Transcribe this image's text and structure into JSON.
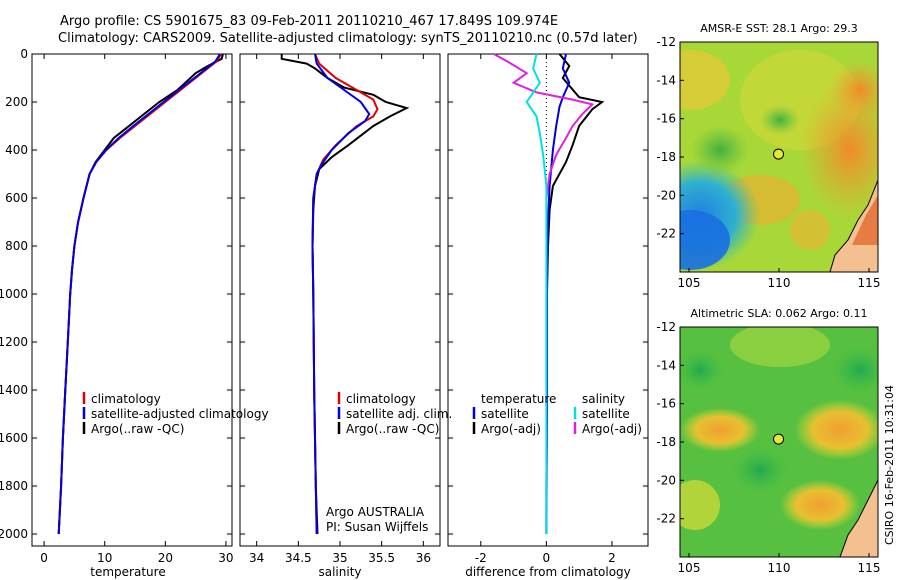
{
  "header": {
    "title_line1": "Argo profile: CS 5901675_83 09-Feb-2011 20110210_467 17.849S 109.974E",
    "title_line2": "Climatology: CARS2009. Satellite-adjusted climatology: synTS_20110210.nc (0.57d later)"
  },
  "footer_stamp": "CSIRO 16-Feb-2011 10:31:04",
  "chart_data": [
    {
      "type": "line",
      "panel": "temperature",
      "xlabel": "temperature",
      "ylabel": "",
      "xlim": [
        -2,
        31
      ],
      "ylim": [
        2050,
        0
      ],
      "xticks": [
        0,
        10,
        20,
        30
      ],
      "yticks": [
        0,
        200,
        400,
        600,
        800,
        1000,
        1200,
        1400,
        1600,
        1800,
        2000
      ],
      "legend": [
        {
          "label": "climatology",
          "color": "#e00000"
        },
        {
          "label": "satellite-adjusted climatology",
          "color": "#0000e0"
        },
        {
          "label": "Argo(..raw -QC)",
          "color": "#000000"
        }
      ],
      "series": [
        {
          "name": "Argo(..raw -QC)",
          "color": "#000000",
          "points": [
            [
              29.5,
              0
            ],
            [
              29.3,
              20
            ],
            [
              27,
              50
            ],
            [
              25,
              80
            ],
            [
              22,
              150
            ],
            [
              19,
              200
            ],
            [
              16.5,
              250
            ],
            [
              14,
              300
            ],
            [
              11.5,
              350
            ],
            [
              10,
              400
            ],
            [
              8.5,
              450
            ],
            [
              7.5,
              500
            ],
            [
              6.5,
              600
            ],
            [
              5.6,
              700
            ],
            [
              5,
              800
            ],
            [
              4.6,
              900
            ],
            [
              4.3,
              1000
            ],
            [
              3.9,
              1200
            ],
            [
              3.5,
              1400
            ],
            [
              3.1,
              1600
            ],
            [
              2.8,
              1800
            ],
            [
              2.4,
              2000
            ]
          ]
        },
        {
          "name": "climatology",
          "color": "#e00000",
          "points": [
            [
              29.2,
              0
            ],
            [
              28.5,
              30
            ],
            [
              27,
              60
            ],
            [
              25,
              100
            ],
            [
              22.5,
              150
            ],
            [
              20,
              200
            ],
            [
              17.5,
              250
            ],
            [
              15,
              300
            ],
            [
              12.5,
              350
            ],
            [
              10.3,
              400
            ],
            [
              8.6,
              450
            ],
            [
              7.5,
              500
            ],
            [
              6.5,
              600
            ],
            [
              5.6,
              700
            ],
            [
              5,
              800
            ],
            [
              4.6,
              900
            ],
            [
              4.3,
              1000
            ],
            [
              3.9,
              1200
            ],
            [
              3.5,
              1400
            ],
            [
              3.1,
              1600
            ],
            [
              2.8,
              1800
            ],
            [
              2.4,
              2000
            ]
          ]
        },
        {
          "name": "satellite-adjusted climatology",
          "color": "#0000e0",
          "points": [
            [
              29,
              0
            ],
            [
              28.3,
              30
            ],
            [
              26.8,
              60
            ],
            [
              24.8,
              100
            ],
            [
              22.2,
              150
            ],
            [
              19.7,
              200
            ],
            [
              17.2,
              250
            ],
            [
              14.7,
              300
            ],
            [
              12.3,
              350
            ],
            [
              10.2,
              400
            ],
            [
              8.6,
              450
            ],
            [
              7.5,
              500
            ],
            [
              6.5,
              600
            ],
            [
              5.6,
              700
            ],
            [
              5,
              800
            ],
            [
              4.6,
              900
            ],
            [
              4.3,
              1000
            ],
            [
              3.9,
              1200
            ],
            [
              3.5,
              1400
            ],
            [
              3.1,
              1600
            ],
            [
              2.8,
              1800
            ],
            [
              2.4,
              2000
            ]
          ]
        }
      ]
    },
    {
      "type": "line",
      "panel": "salinity",
      "xlabel": "salinity",
      "xlim": [
        33.8,
        36.2
      ],
      "ylim": [
        2050,
        0
      ],
      "xticks": [
        34,
        34.5,
        35,
        35.5,
        36
      ],
      "legend": [
        {
          "label": "climatology",
          "color": "#e00000"
        },
        {
          "label": "satellite adj. clim.",
          "color": "#0000e0"
        },
        {
          "label": "Argo(..raw -QC)",
          "color": "#000000"
        }
      ],
      "annotations": [
        "Argo AUSTRALIA",
        "PI: Susan Wijffels"
      ],
      "series": [
        {
          "name": "Argo(..raw -QC)",
          "color": "#000000",
          "points": [
            [
              34.3,
              0
            ],
            [
              34.3,
              20
            ],
            [
              34.6,
              40
            ],
            [
              34.7,
              60
            ],
            [
              34.85,
              100
            ],
            [
              35.05,
              140
            ],
            [
              35.4,
              170
            ],
            [
              35.55,
              200
            ],
            [
              35.65,
              210
            ],
            [
              35.8,
              225
            ],
            [
              35.6,
              260
            ],
            [
              35.4,
              300
            ],
            [
              35.1,
              380
            ],
            [
              34.9,
              430
            ],
            [
              34.75,
              480
            ],
            [
              34.7,
              550
            ],
            [
              34.68,
              650
            ],
            [
              34.67,
              800
            ],
            [
              34.68,
              1000
            ],
            [
              34.69,
              1400
            ],
            [
              34.71,
              1800
            ],
            [
              34.73,
              2000
            ]
          ]
        },
        {
          "name": "climatology",
          "color": "#e00000",
          "points": [
            [
              34.7,
              0
            ],
            [
              34.75,
              40
            ],
            [
              34.95,
              100
            ],
            [
              35.2,
              150
            ],
            [
              35.4,
              190
            ],
            [
              35.45,
              230
            ],
            [
              35.4,
              260
            ],
            [
              35.2,
              300
            ],
            [
              34.95,
              380
            ],
            [
              34.8,
              440
            ],
            [
              34.72,
              500
            ],
            [
              34.68,
              600
            ],
            [
              34.67,
              800
            ],
            [
              34.68,
              1000
            ],
            [
              34.69,
              1400
            ],
            [
              34.71,
              1800
            ],
            [
              34.72,
              2000
            ]
          ]
        },
        {
          "name": "satellite adj. clim.",
          "color": "#0000e0",
          "points": [
            [
              34.7,
              0
            ],
            [
              34.72,
              40
            ],
            [
              34.85,
              100
            ],
            [
              35.05,
              150
            ],
            [
              35.25,
              200
            ],
            [
              35.35,
              250
            ],
            [
              35.3,
              280
            ],
            [
              35.1,
              330
            ],
            [
              34.9,
              400
            ],
            [
              34.78,
              460
            ],
            [
              34.72,
              500
            ],
            [
              34.68,
              600
            ],
            [
              34.67,
              800
            ],
            [
              34.68,
              1000
            ],
            [
              34.69,
              1400
            ],
            [
              34.71,
              1800
            ],
            [
              34.72,
              2000
            ]
          ]
        }
      ]
    },
    {
      "type": "line",
      "panel": "difference",
      "xlabel": "difference from climatology",
      "xlim": [
        -3,
        3.1
      ],
      "ylim": [
        2050,
        0
      ],
      "xticks": [
        -2,
        0,
        2
      ],
      "legend_left_title": "temperature",
      "legend_right_title": "salinity",
      "legend": [
        {
          "label": "satellite",
          "color": "#0000e0",
          "group": "temperature"
        },
        {
          "label": "Argo(-adj)",
          "color": "#000000",
          "group": "temperature"
        },
        {
          "label": "satellite",
          "color": "#00e0e0",
          "group": "salinity"
        },
        {
          "label": "Argo(-adj)",
          "color": "#e020e0",
          "group": "salinity"
        }
      ],
      "series": [
        {
          "name": "temperature Argo(-adj)",
          "color": "#000000",
          "points": [
            [
              0.4,
              0
            ],
            [
              0.7,
              50
            ],
            [
              0.5,
              100
            ],
            [
              1.0,
              180
            ],
            [
              1.7,
              200
            ],
            [
              1.4,
              230
            ],
            [
              1.0,
              300
            ],
            [
              0.8,
              380
            ],
            [
              0.6,
              450
            ],
            [
              0.2,
              550
            ],
            [
              0.1,
              650
            ],
            [
              0.05,
              800
            ],
            [
              0.02,
              1000
            ],
            [
              0.02,
              1400
            ],
            [
              0.0,
              1800
            ],
            [
              0.0,
              2000
            ]
          ]
        },
        {
          "name": "temperature satellite",
          "color": "#0000e0",
          "points": [
            [
              0.6,
              0
            ],
            [
              0.5,
              60
            ],
            [
              0.7,
              120
            ],
            [
              0.5,
              180
            ],
            [
              0.4,
              220
            ],
            [
              0.3,
              300
            ],
            [
              0.2,
              400
            ],
            [
              0.1,
              550
            ],
            [
              0.05,
              700
            ],
            [
              0.02,
              900
            ],
            [
              0.02,
              1400
            ],
            [
              0.0,
              2000
            ]
          ]
        },
        {
          "name": "salinity Argo(-adj)",
          "color": "#e020e0",
          "points": [
            [
              -1.6,
              0
            ],
            [
              -1.2,
              30
            ],
            [
              -0.6,
              80
            ],
            [
              -1.0,
              120
            ],
            [
              -0.3,
              160
            ],
            [
              0.8,
              190
            ],
            [
              1.4,
              210
            ],
            [
              1.1,
              250
            ],
            [
              0.8,
              300
            ],
            [
              0.6,
              350
            ],
            [
              0.3,
              420
            ],
            [
              0.1,
              500
            ],
            [
              0.0,
              600
            ]
          ]
        },
        {
          "name": "salinity satellite",
          "color": "#00e0e0",
          "points": [
            [
              -0.3,
              0
            ],
            [
              -0.4,
              60
            ],
            [
              -0.2,
              120
            ],
            [
              -0.6,
              200
            ],
            [
              -0.3,
              260
            ],
            [
              -0.2,
              330
            ],
            [
              -0.1,
              420
            ],
            [
              0.0,
              550
            ],
            [
              0.0,
              800
            ],
            [
              0.0,
              1200
            ],
            [
              0.0,
              1600
            ],
            [
              0.0,
              2000
            ]
          ]
        }
      ]
    },
    {
      "type": "heatmap",
      "panel": "sst-map",
      "title": "AMSR-E SST: 28.1 Argo: 29.3",
      "xlim": [
        104.5,
        115.5
      ],
      "ylim": [
        -24,
        -12
      ],
      "xticks": [
        105,
        110,
        115
      ],
      "yticks": [
        -12,
        -14,
        -16,
        -18,
        -20,
        -22
      ],
      "marker": [
        109.974,
        -17.849
      ]
    },
    {
      "type": "heatmap",
      "panel": "sla-map",
      "title": "Altimetric SLA: 0.062 Argo: 0.11",
      "xlim": [
        104.5,
        115.5
      ],
      "ylim": [
        -24,
        -12
      ],
      "xticks": [
        105,
        110,
        115
      ],
      "yticks": [
        -12,
        -14,
        -16,
        -18,
        -20,
        -22
      ],
      "marker": [
        109.974,
        -17.849
      ]
    }
  ]
}
